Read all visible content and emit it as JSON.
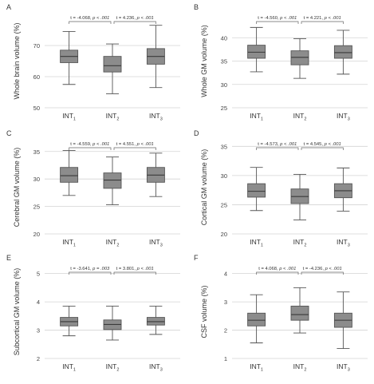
{
  "chart_data": [
    {
      "panel": "A",
      "type": "boxplot",
      "ylabel": "Whole brain volume (%)",
      "ylim": [
        50,
        80
      ],
      "yticks": [
        "50",
        "60",
        "70"
      ],
      "grid": true,
      "categories": [
        {
          "base": "INT",
          "sub": "1"
        },
        {
          "base": "INT",
          "sub": "2"
        },
        {
          "base": "INT",
          "sub": "3"
        }
      ],
      "boxes": [
        {
          "min": 57.5,
          "q1": 64.5,
          "median": 66.5,
          "q3": 68.5,
          "max": 74.5
        },
        {
          "min": 54.5,
          "q1": 61.5,
          "median": 63.5,
          "q3": 66.5,
          "max": 70.5
        },
        {
          "min": 56.5,
          "q1": 64.0,
          "median": 66.5,
          "q3": 69.0,
          "max": 76.5
        }
      ],
      "annotations": [
        {
          "t": "t = -4.068,",
          "p": "p < .001"
        },
        {
          "t": "t = 4.236,",
          "p": "p < .001"
        }
      ]
    },
    {
      "panel": "B",
      "type": "boxplot",
      "ylabel": "Whole GM volume (%)",
      "ylim": [
        25,
        45
      ],
      "yticks": [
        "25",
        "30",
        "35",
        "40"
      ],
      "grid": true,
      "categories": [
        {
          "base": "INT",
          "sub": "1"
        },
        {
          "base": "INT",
          "sub": "2"
        },
        {
          "base": "INT",
          "sub": "3"
        }
      ],
      "boxes": [
        {
          "min": 32.7,
          "q1": 35.6,
          "median": 36.9,
          "q3": 38.4,
          "max": 42.2
        },
        {
          "min": 31.3,
          "q1": 34.2,
          "median": 35.8,
          "q3": 37.2,
          "max": 39.8
        },
        {
          "min": 32.2,
          "q1": 35.6,
          "median": 36.8,
          "q3": 38.3,
          "max": 41.6
        }
      ],
      "annotations": [
        {
          "t": "t = -4.560,",
          "p": "p < .001"
        },
        {
          "t": "t = 4.221,",
          "p": "p < .001"
        }
      ]
    },
    {
      "panel": "C",
      "type": "boxplot",
      "ylabel": "Cerebral GM volume (%)",
      "ylim": [
        20,
        37
      ],
      "yticks": [
        "20",
        "25",
        "30",
        "35"
      ],
      "grid": true,
      "categories": [
        {
          "base": "INT",
          "sub": "1"
        },
        {
          "base": "INT",
          "sub": "2"
        },
        {
          "base": "INT",
          "sub": "3"
        }
      ],
      "boxes": [
        {
          "min": 27.0,
          "q1": 29.4,
          "median": 30.6,
          "q3": 32.1,
          "max": 35.2
        },
        {
          "min": 25.3,
          "q1": 28.3,
          "median": 29.8,
          "q3": 31.1,
          "max": 34.0
        },
        {
          "min": 26.8,
          "q1": 29.4,
          "median": 30.7,
          "q3": 32.1,
          "max": 34.7
        }
      ],
      "annotations": [
        {
          "t": "t = -4.559,",
          "p": "p < .001"
        },
        {
          "t": "t = 4.551,",
          "p": "p < .001"
        }
      ]
    },
    {
      "panel": "D",
      "type": "boxplot",
      "ylabel": "Cortical GM volume (%)",
      "ylim": [
        20,
        36
      ],
      "yticks": [
        "20",
        "25",
        "30",
        "35"
      ],
      "grid": true,
      "categories": [
        {
          "base": "INT",
          "sub": "1"
        },
        {
          "base": "INT",
          "sub": "2"
        },
        {
          "base": "INT",
          "sub": "3"
        }
      ],
      "boxes": [
        {
          "min": 24.0,
          "q1": 26.3,
          "median": 27.3,
          "q3": 28.6,
          "max": 31.4
        },
        {
          "min": 22.4,
          "q1": 25.2,
          "median": 26.4,
          "q3": 27.7,
          "max": 30.2
        },
        {
          "min": 23.9,
          "q1": 26.2,
          "median": 27.4,
          "q3": 28.6,
          "max": 31.3
        }
      ],
      "annotations": [
        {
          "t": "t = -4.573,",
          "p": "p < .001"
        },
        {
          "t": "t = 4.545,",
          "p": "p < .001"
        }
      ]
    },
    {
      "panel": "E",
      "type": "boxplot",
      "ylabel": "Subcortical GM volume (%)",
      "ylim": [
        2,
        5.3
      ],
      "yticks": [
        "2",
        "3",
        "4",
        "5"
      ],
      "grid": true,
      "categories": [
        {
          "base": "INT",
          "sub": "1"
        },
        {
          "base": "INT",
          "sub": "2"
        },
        {
          "base": "INT",
          "sub": "3"
        }
      ],
      "boxes": [
        {
          "min": 2.8,
          "q1": 3.15,
          "median": 3.3,
          "q3": 3.45,
          "max": 3.85
        },
        {
          "min": 2.65,
          "q1": 3.02,
          "median": 3.2,
          "q3": 3.36,
          "max": 3.85
        },
        {
          "min": 2.85,
          "q1": 3.18,
          "median": 3.3,
          "q3": 3.45,
          "max": 3.85
        }
      ],
      "annotations": [
        {
          "t": "t = -3.641,",
          "p": "p = .003"
        },
        {
          "t": "t = 3.801,",
          "p": "p < .001"
        }
      ]
    },
    {
      "panel": "F",
      "type": "boxplot",
      "ylabel": "CSF volume (%)",
      "ylim": [
        1,
        4.3
      ],
      "yticks": [
        "1",
        "2",
        "3",
        "4"
      ],
      "grid": true,
      "categories": [
        {
          "base": "INT",
          "sub": "1"
        },
        {
          "base": "INT",
          "sub": "2"
        },
        {
          "base": "INT",
          "sub": "3"
        }
      ],
      "boxes": [
        {
          "min": 1.55,
          "q1": 2.15,
          "median": 2.35,
          "q3": 2.6,
          "max": 3.25
        },
        {
          "min": 1.9,
          "q1": 2.35,
          "median": 2.55,
          "q3": 2.85,
          "max": 3.5
        },
        {
          "min": 1.35,
          "q1": 2.1,
          "median": 2.35,
          "q3": 2.6,
          "max": 3.35
        }
      ],
      "annotations": [
        {
          "t": "t = 4.068,",
          "p": "p < .001"
        },
        {
          "t": "t = -4.236,",
          "p": "p < .001"
        }
      ]
    }
  ]
}
